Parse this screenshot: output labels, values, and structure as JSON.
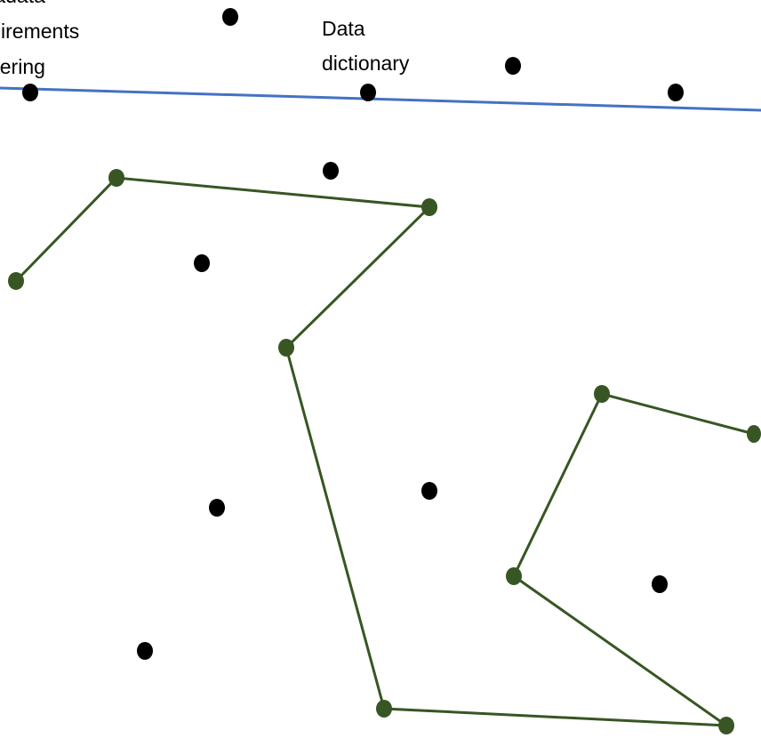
{
  "labels": {
    "metadata_requirements": [
      "Metadata",
      "requirements",
      "gathering"
    ],
    "data_dictionary": [
      "Data",
      "dictionary"
    ]
  },
  "colors": {
    "timeline": "#4472C4",
    "path": "#375623",
    "path_node": "#375623",
    "dot": "#000000"
  }
}
